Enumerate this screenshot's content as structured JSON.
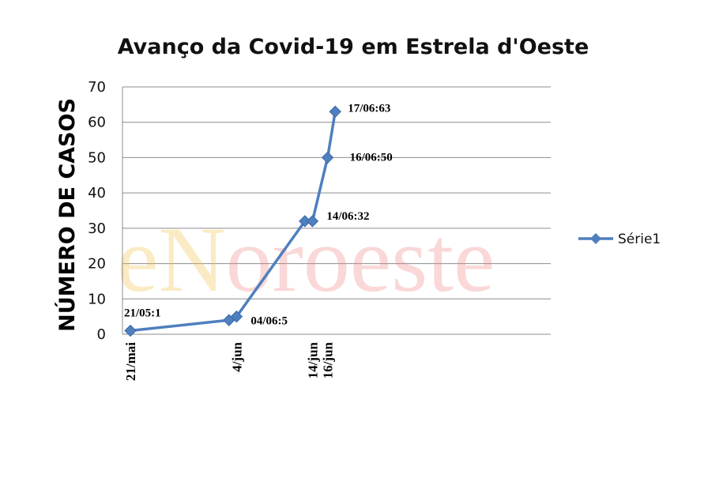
{
  "chart_data": {
    "type": "line",
    "title": "Avanço da Covid-19 em Estrela d'Oeste",
    "ylabel": "NÚMERO DE CASOS",
    "xlabel": "",
    "ylim": [
      0,
      70
    ],
    "yticks": [
      "0",
      "10",
      "20",
      "30",
      "40",
      "50",
      "60",
      "70"
    ],
    "grid": true,
    "legend_placement": "right",
    "series": [
      {
        "name": "Série1",
        "color": "#4f7fbf",
        "points": [
          {
            "day": 0,
            "value": 1
          },
          {
            "day": 13,
            "value": 4
          },
          {
            "day": 14,
            "value": 5
          },
          {
            "day": 23,
            "value": 32
          },
          {
            "day": 24,
            "value": 32
          },
          {
            "day": 26,
            "value": 50
          },
          {
            "day": 27,
            "value": 63
          }
        ]
      }
    ],
    "xticks": [
      {
        "day": 0,
        "label": "21/mai"
      },
      {
        "day": 14,
        "label": "4/jun"
      },
      {
        "day": 24,
        "label": "14/jun"
      },
      {
        "day": 26,
        "label": "16/jun"
      }
    ],
    "data_labels": [
      {
        "point": 0,
        "text": "21/05:1"
      },
      {
        "point": 2,
        "text": "04/06:5"
      },
      {
        "point": 4,
        "text": "14/06:32"
      },
      {
        "point": 5,
        "text": "16/06:50"
      },
      {
        "point": 6,
        "text": "17/06:63"
      }
    ]
  },
  "watermark": {
    "text": "eNoroeste",
    "colors": [
      "#f0c040",
      "#f0c040",
      "#f08080",
      "#f08080",
      "#f08080",
      "#f08080",
      "#f08080",
      "#f08080",
      "#f08080"
    ]
  }
}
